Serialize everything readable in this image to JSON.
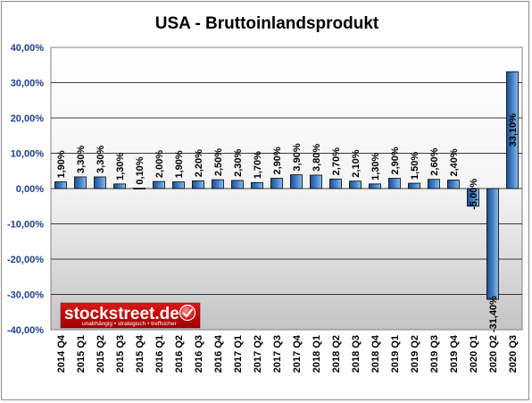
{
  "chart_data": {
    "type": "bar",
    "title": "USA - Bruttoinlandsprodukt",
    "xlabel": "",
    "ylabel": "",
    "categories": [
      "2014 Q4",
      "2015 Q1",
      "2015 Q2",
      "2015 Q3",
      "2015 Q4",
      "2016 Q1",
      "2016 Q2",
      "2016 Q3",
      "2016 Q4",
      "2017 Q1",
      "2017 Q2",
      "2017 Q3",
      "2017 Q4",
      "2018 Q1",
      "2018 Q2",
      "2018 Q3",
      "2018 Q4",
      "2019 Q1",
      "2019 Q2",
      "2019 Q3",
      "2019 Q4",
      "2020 Q1",
      "2020 Q2",
      "2020 Q3"
    ],
    "values": [
      1.9,
      3.3,
      3.3,
      1.3,
      0.1,
      2.0,
      1.9,
      2.2,
      2.5,
      2.3,
      1.7,
      2.9,
      3.9,
      3.8,
      2.7,
      2.1,
      1.3,
      2.9,
      1.5,
      2.6,
      2.4,
      -5.0,
      -31.4,
      33.1
    ],
    "data_labels": [
      "1,90%",
      "3,30%",
      "3,30%",
      "1,30%",
      "0,10%",
      "2,00%",
      "1,90%",
      "2,20%",
      "2,50%",
      "2,30%",
      "1,70%",
      "2,90%",
      "3,90%",
      "3,80%",
      "2,70%",
      "2,10%",
      "1,30%",
      "2,90%",
      "1,50%",
      "2,60%",
      "2,40%",
      "-5,00%",
      "-31,40%",
      "33,10%"
    ],
    "ylim": [
      -40,
      40
    ],
    "yticks": [
      40,
      30,
      20,
      10,
      0,
      -10,
      -20,
      -30,
      -40
    ],
    "ytick_labels": [
      "40,00%",
      "30,00%",
      "20,00%",
      "10,00%",
      "0,00%",
      "-10,00%",
      "-20,00%",
      "-30,00%",
      "-40,00%"
    ],
    "grid": true,
    "legend": "none",
    "colors": {
      "bar_dark": "#1f4e8c",
      "bar_light": "#7fb2e5",
      "bar_border": "#000000",
      "plot_bg_top": "#ffffff",
      "plot_bg_bottom": "#c8c8c8",
      "ytick_text": "#1f3f8f"
    }
  },
  "watermark": {
    "brand": "stockstreet.de",
    "tagline": "unabhängig • strategisch • treffsicher",
    "color": "#c00000"
  }
}
